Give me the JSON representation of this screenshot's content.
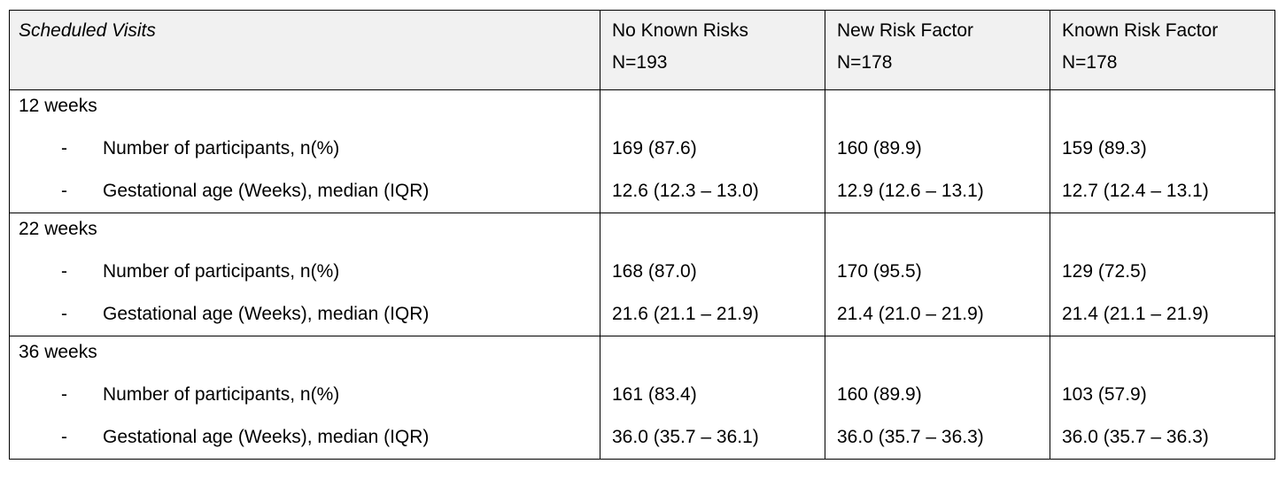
{
  "header": {
    "col0": "Scheduled Visits",
    "columns": [
      {
        "name": "No Known Risks",
        "n": "N=193"
      },
      {
        "name": "New Risk Factor",
        "n": "N=178"
      },
      {
        "name": "Known Risk Factor",
        "n": "N=178"
      }
    ]
  },
  "dash": "-",
  "groups": [
    {
      "label": "12 weeks",
      "rows": [
        {
          "label": "Number of participants, n(%)",
          "values": [
            "169 (87.6)",
            "160 (89.9)",
            "159 (89.3)"
          ]
        },
        {
          "label": "Gestational age (Weeks), median (IQR)",
          "values": [
            "12.6 (12.3 – 13.0)",
            "12.9 (12.6 – 13.1)",
            "12.7 (12.4 – 13.1)"
          ]
        }
      ]
    },
    {
      "label": "22 weeks",
      "rows": [
        {
          "label": "Number of participants, n(%)",
          "values": [
            "168 (87.0)",
            "170 (95.5)",
            "129 (72.5)"
          ]
        },
        {
          "label": "Gestational age (Weeks), median (IQR)",
          "values": [
            "21.6 (21.1 – 21.9)",
            "21.4 (21.0 – 21.9)",
            "21.4 (21.1 – 21.9)"
          ]
        }
      ]
    },
    {
      "label": "36 weeks",
      "rows": [
        {
          "label": "Number of participants, n(%)",
          "values": [
            "161 (83.4)",
            "160 (89.9)",
            "103 (57.9)"
          ]
        },
        {
          "label": "Gestational age (Weeks), median (IQR)",
          "values": [
            "36.0 (35.7 – 36.1)",
            "36.0 (35.7 – 36.3)",
            "36.0 (35.7 – 36.3)"
          ]
        }
      ]
    }
  ]
}
